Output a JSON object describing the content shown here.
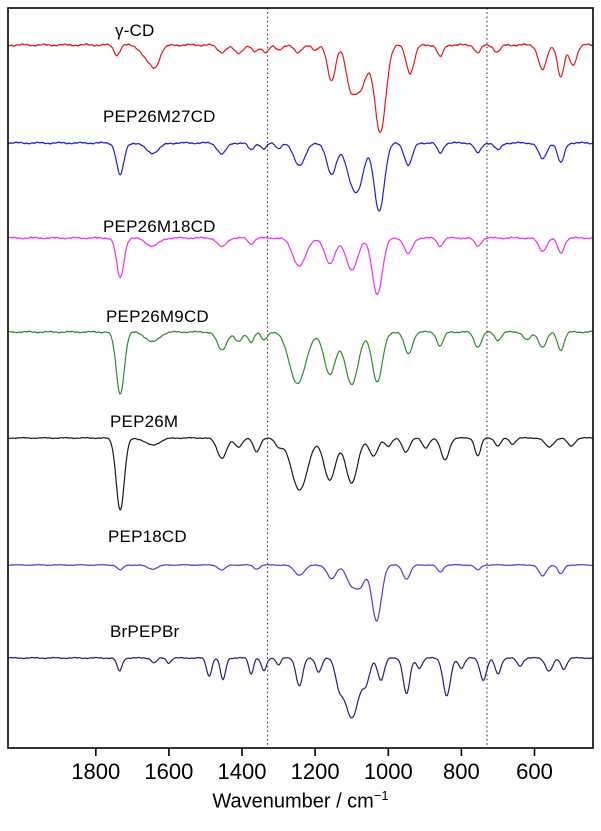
{
  "figure": {
    "xlabel_main": "Wavenumber / cm",
    "xlabel_sup": "−1"
  },
  "chart_data": {
    "type": "line",
    "title": "",
    "xlabel": "Wavenumber / cm⁻¹",
    "ylabel": "",
    "legend_position": "inline-labels-above-each-trace",
    "grid": "off",
    "x_axis": {
      "min": 440,
      "max": 2040,
      "reversed": true,
      "ticks": [
        1800,
        1600,
        1400,
        1200,
        1000,
        800,
        600
      ]
    },
    "y_axis": {
      "visible": false,
      "note": "stacked transmittance, arbitrary units"
    },
    "gridlines": {
      "vertical_dotted_at": [
        1330,
        730
      ]
    },
    "series": [
      {
        "name": "γ-CD",
        "color": "#e31a1c",
        "offset": 45,
        "label_x": 115,
        "label_y": 21,
        "noise": 1.3,
        "seed": 1,
        "peaks": [
          [
            1742,
            8,
            10
          ],
          [
            1650,
            20,
            18
          ],
          [
            1635,
            10,
            8
          ],
          [
            1455,
            12,
            7
          ],
          [
            1410,
            12,
            8
          ],
          [
            1365,
            9,
            7
          ],
          [
            1335,
            9,
            7
          ],
          [
            1300,
            9,
            5
          ],
          [
            1248,
            10,
            8
          ],
          [
            1200,
            8,
            6
          ],
          [
            1155,
            11,
            36
          ],
          [
            1105,
            12,
            30
          ],
          [
            1078,
            18,
            45
          ],
          [
            1022,
            15,
            88
          ],
          [
            940,
            11,
            28
          ],
          [
            858,
            8,
            12
          ],
          [
            755,
            8,
            8
          ],
          [
            702,
            9,
            7
          ],
          [
            578,
            11,
            25
          ],
          [
            528,
            9,
            32
          ],
          [
            495,
            10,
            20
          ]
        ]
      },
      {
        "name": "PEP26M27CD",
        "color": "#2020cc",
        "offset": 143,
        "label_x": 103,
        "label_y": 107,
        "noise": 1.1,
        "seed": 2,
        "peaks": [
          [
            1733,
            10,
            32
          ],
          [
            1645,
            18,
            10
          ],
          [
            1455,
            12,
            11
          ],
          [
            1375,
            8,
            7
          ],
          [
            1340,
            8,
            6
          ],
          [
            1300,
            8,
            5
          ],
          [
            1243,
            16,
            22
          ],
          [
            1155,
            13,
            32
          ],
          [
            1100,
            16,
            35
          ],
          [
            1078,
            14,
            30
          ],
          [
            1025,
            14,
            68
          ],
          [
            945,
            11,
            22
          ],
          [
            858,
            8,
            10
          ],
          [
            755,
            9,
            10
          ],
          [
            700,
            9,
            7
          ],
          [
            578,
            11,
            16
          ],
          [
            528,
            9,
            20
          ]
        ]
      },
      {
        "name": "PEP26M18CD",
        "color": "#ee30ee",
        "offset": 238,
        "label_x": 103,
        "label_y": 217,
        "noise": 1.0,
        "seed": 3,
        "peaks": [
          [
            1733,
            10,
            40
          ],
          [
            1645,
            18,
            8
          ],
          [
            1455,
            12,
            9
          ],
          [
            1375,
            8,
            6
          ],
          [
            1243,
            18,
            28
          ],
          [
            1160,
            14,
            26
          ],
          [
            1100,
            16,
            32
          ],
          [
            1030,
            14,
            56
          ],
          [
            945,
            11,
            16
          ],
          [
            858,
            8,
            8
          ],
          [
            755,
            9,
            8
          ],
          [
            578,
            11,
            13
          ],
          [
            528,
            9,
            15
          ]
        ]
      },
      {
        "name": "PEP26M9CD",
        "color": "#2e8b2e",
        "offset": 332,
        "label_x": 106,
        "label_y": 307,
        "noise": 1.0,
        "seed": 4,
        "peaks": [
          [
            1733,
            11,
            62
          ],
          [
            1645,
            18,
            10
          ],
          [
            1455,
            13,
            18
          ],
          [
            1410,
            10,
            10
          ],
          [
            1375,
            8,
            10
          ],
          [
            1340,
            8,
            8
          ],
          [
            1248,
            22,
            52
          ],
          [
            1160,
            16,
            42
          ],
          [
            1100,
            18,
            52
          ],
          [
            1030,
            14,
            50
          ],
          [
            945,
            11,
            22
          ],
          [
            858,
            9,
            14
          ],
          [
            755,
            10,
            15
          ],
          [
            700,
            9,
            8
          ],
          [
            620,
            10,
            8
          ],
          [
            578,
            11,
            15
          ],
          [
            528,
            9,
            18
          ]
        ]
      },
      {
        "name": "PEP26M",
        "color": "#1a1a1a",
        "offset": 438,
        "label_x": 110,
        "label_y": 412,
        "noise": 0.6,
        "seed": 5,
        "peaks": [
          [
            1733,
            11,
            72
          ],
          [
            1645,
            20,
            7
          ],
          [
            1455,
            13,
            20
          ],
          [
            1410,
            10,
            9
          ],
          [
            1360,
            9,
            14
          ],
          [
            1300,
            10,
            8
          ],
          [
            1243,
            22,
            52
          ],
          [
            1160,
            16,
            42
          ],
          [
            1100,
            16,
            45
          ],
          [
            1040,
            12,
            18
          ],
          [
            1000,
            9,
            8
          ],
          [
            952,
            10,
            14
          ],
          [
            898,
            9,
            10
          ],
          [
            845,
            11,
            22
          ],
          [
            755,
            8,
            18
          ],
          [
            700,
            8,
            8
          ],
          [
            660,
            8,
            6
          ],
          [
            560,
            12,
            9
          ],
          [
            500,
            10,
            8
          ]
        ]
      },
      {
        "name": "PEP18CD",
        "color": "#6633cc",
        "offset": 565,
        "label_x": 108,
        "label_y": 527,
        "noise": 0.5,
        "seed": 6,
        "peaks": [
          [
            1733,
            8,
            5
          ],
          [
            1645,
            14,
            4
          ],
          [
            1455,
            10,
            5
          ],
          [
            1360,
            8,
            4
          ],
          [
            1243,
            14,
            10
          ],
          [
            1155,
            12,
            14
          ],
          [
            1100,
            14,
            20
          ],
          [
            1075,
            12,
            18
          ],
          [
            1032,
            13,
            56
          ],
          [
            950,
            10,
            14
          ],
          [
            858,
            8,
            7
          ],
          [
            755,
            8,
            5
          ],
          [
            578,
            10,
            11
          ],
          [
            528,
            8,
            9
          ]
        ]
      },
      {
        "name": "BrPEPBr",
        "color": "#202070",
        "offset": 658,
        "label_x": 110,
        "label_y": 622,
        "noise": 0.7,
        "seed": 7,
        "peaks": [
          [
            1735,
            7,
            13
          ],
          [
            1640,
            7,
            5
          ],
          [
            1600,
            6,
            5
          ],
          [
            1490,
            7,
            18
          ],
          [
            1452,
            7,
            22
          ],
          [
            1375,
            6,
            16
          ],
          [
            1340,
            7,
            13
          ],
          [
            1300,
            6,
            7
          ],
          [
            1243,
            9,
            28
          ],
          [
            1190,
            8,
            14
          ],
          [
            1135,
            10,
            20
          ],
          [
            1100,
            20,
            60
          ],
          [
            1060,
            10,
            20
          ],
          [
            1020,
            9,
            22
          ],
          [
            950,
            9,
            36
          ],
          [
            915,
            8,
            10
          ],
          [
            840,
            10,
            38
          ],
          [
            800,
            8,
            10
          ],
          [
            740,
            9,
            22
          ],
          [
            700,
            8,
            16
          ],
          [
            640,
            8,
            8
          ],
          [
            560,
            10,
            13
          ],
          [
            520,
            8,
            11
          ]
        ]
      }
    ]
  }
}
